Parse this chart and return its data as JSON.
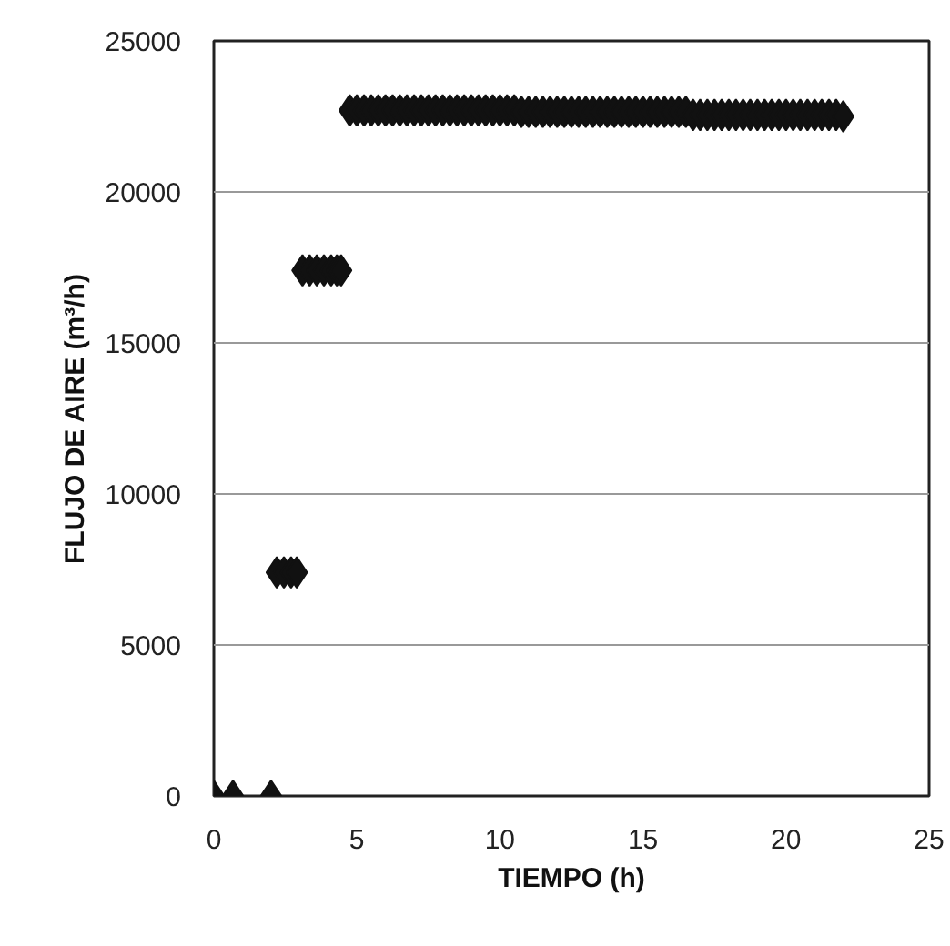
{
  "chart_data": {
    "type": "scatter",
    "xlabel": "TIEMPO (h)",
    "ylabel": "FLUJO DE AIRE (m³/h)",
    "x": [
      0,
      0.67,
      2,
      2.2,
      2.45,
      2.7,
      2.9,
      3.1,
      3.35,
      3.6,
      3.85,
      4.1,
      4.3,
      4.45,
      4.75,
      5,
      5.25,
      5.5,
      5.75,
      6,
      6.25,
      6.5,
      6.75,
      7,
      7.25,
      7.5,
      7.75,
      8,
      8.25,
      8.5,
      8.75,
      9,
      9.25,
      9.5,
      9.75,
      10,
      10.25,
      10.5,
      10.75,
      11,
      11.25,
      11.5,
      11.75,
      12,
      12.25,
      12.5,
      12.75,
      13,
      13.25,
      13.5,
      13.75,
      14,
      14.25,
      14.5,
      14.75,
      15,
      15.25,
      15.5,
      15.75,
      16,
      16.25,
      16.5,
      16.75,
      17,
      17.25,
      17.5,
      17.75,
      18,
      18.25,
      18.5,
      18.75,
      19,
      19.25,
      19.5,
      19.75,
      20,
      20.25,
      20.5,
      20.75,
      21,
      21.25,
      21.5,
      21.75,
      22
    ],
    "values": [
      0,
      0,
      0,
      7400,
      7400,
      7400,
      7400,
      17400,
      17400,
      17400,
      17400,
      17400,
      17400,
      17400,
      22700,
      22700,
      22700,
      22700,
      22700,
      22700,
      22700,
      22700,
      22700,
      22700,
      22700,
      22700,
      22700,
      22700,
      22700,
      22700,
      22700,
      22700,
      22700,
      22700,
      22700,
      22700,
      22700,
      22700,
      22650,
      22650,
      22650,
      22650,
      22650,
      22650,
      22650,
      22650,
      22650,
      22650,
      22650,
      22650,
      22650,
      22650,
      22650,
      22650,
      22650,
      22650,
      22650,
      22650,
      22650,
      22650,
      22650,
      22650,
      22550,
      22550,
      22550,
      22550,
      22550,
      22550,
      22550,
      22550,
      22550,
      22550,
      22550,
      22550,
      22550,
      22550,
      22550,
      22550,
      22550,
      22550,
      22550,
      22550,
      22550,
      22500
    ],
    "color": "#111111",
    "marker": "diamond",
    "xlim": [
      0,
      25
    ],
    "ylim": [
      0,
      25000
    ],
    "xticks": [
      0,
      5,
      10,
      15,
      20,
      25
    ],
    "yticks": [
      0,
      5000,
      10000,
      15000,
      20000,
      25000
    ],
    "grid": "y"
  }
}
